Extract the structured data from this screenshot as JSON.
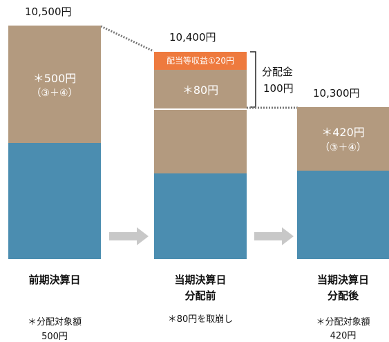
{
  "bars": [
    {
      "total": "10,500円",
      "value_label": "＊500円",
      "value_sub": "（③＋④）",
      "caption": "前期決算日",
      "note_line1": "＊分配対象額",
      "note_line2": "500円"
    },
    {
      "total": "10,400円",
      "dividend_label": "配当等収益①20円",
      "value_label": "＊80円",
      "caption_line1": "当期決算日",
      "caption_line2": "分配前",
      "note_line1": "＊80円を取崩し"
    },
    {
      "total": "10,300円",
      "value_label": "＊420円",
      "value_sub": "（③＋④）",
      "caption_line1": "当期決算日",
      "caption_line2": "分配後",
      "note_line1": "＊分配対象額",
      "note_line2": "420円"
    }
  ],
  "distribution": {
    "label_line1": "分配金",
    "label_line2": "100円"
  },
  "colors": {
    "brown": "#b39a7f",
    "blue": "#4b8db0",
    "orange": "#ee7a3e",
    "arrow": "#c8c8c8"
  }
}
